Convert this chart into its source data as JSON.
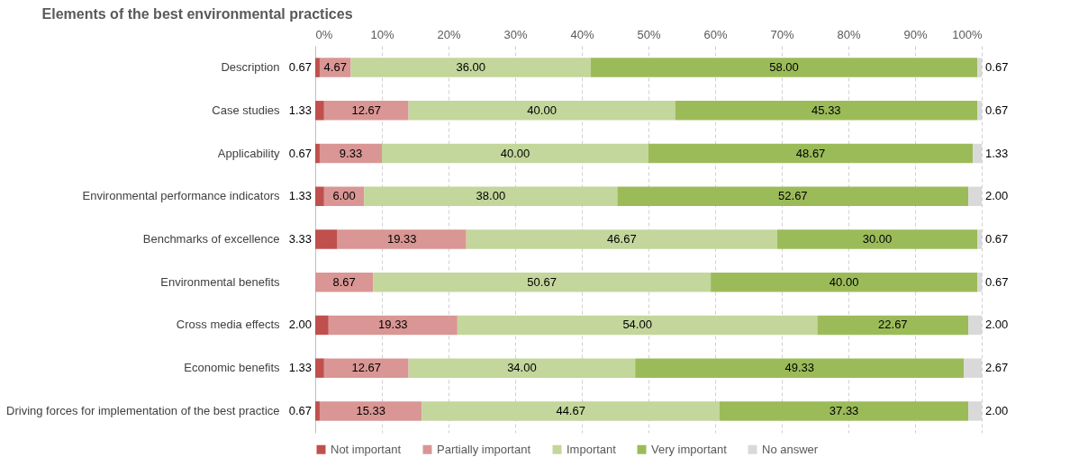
{
  "chart_data": {
    "type": "bar",
    "orientation": "horizontal",
    "stacked": true,
    "title": "Elements of the best environmental practices",
    "categories": [
      "Description",
      "Case studies",
      "Applicability",
      "Environmental performance indicators",
      "Benchmarks of excellence",
      "Environmental benefits",
      "Cross media effects",
      "Economic benefits",
      "Driving forces for implementation of the best practice"
    ],
    "series": [
      {
        "name": "Not important",
        "color": "#c0504d",
        "values": [
          0.67,
          1.33,
          0.67,
          1.33,
          3.33,
          null,
          2.0,
          1.33,
          0.67
        ],
        "value_labels": [
          "0.67",
          "1.33",
          "0.67",
          "1.33",
          "3.33",
          null,
          "2.00",
          "1.33",
          "0.67"
        ]
      },
      {
        "name": "Partially important",
        "color": "#d99694",
        "values": [
          4.67,
          12.67,
          9.33,
          6.0,
          19.33,
          8.67,
          19.33,
          12.67,
          15.33
        ],
        "value_labels": [
          "4.67",
          "12.67",
          "9.33",
          "6.00",
          "19.33",
          "8.67",
          "19.33",
          "12.67",
          "15.33"
        ]
      },
      {
        "name": "Important",
        "color": "#c3d69b",
        "values": [
          36.0,
          40.0,
          40.0,
          38.0,
          46.67,
          50.67,
          54.0,
          34.0,
          44.67
        ],
        "value_labels": [
          "36.00",
          "40.00",
          "40.00",
          "38.00",
          "46.67",
          "50.67",
          "54.00",
          "34.00",
          "44.67"
        ]
      },
      {
        "name": "Very important",
        "color": "#9bbb59",
        "values": [
          58.0,
          45.33,
          48.67,
          52.67,
          30.0,
          40.0,
          22.67,
          49.33,
          37.33
        ],
        "value_labels": [
          "58.00",
          "45.33",
          "48.67",
          "52.67",
          "30.00",
          "40.00",
          "22.67",
          "49.33",
          "37.33"
        ]
      },
      {
        "name": "No answer",
        "color": "#d9d9d9",
        "values": [
          0.67,
          0.67,
          1.33,
          2.0,
          0.67,
          0.67,
          2.0,
          2.67,
          2.0
        ],
        "value_labels": [
          "0.67",
          "0.67",
          "1.33",
          "2.00",
          "0.67",
          "0.67",
          "2.00",
          "2.67",
          "2.00"
        ]
      }
    ],
    "xlim": [
      0,
      100
    ],
    "xticks": [
      {
        "value": 0,
        "label": "0%"
      },
      {
        "value": 10,
        "label": "10%"
      },
      {
        "value": 20,
        "label": "20%"
      },
      {
        "value": 30,
        "label": "30%"
      },
      {
        "value": 40,
        "label": "40%"
      },
      {
        "value": 50,
        "label": "50%"
      },
      {
        "value": 60,
        "label": "60%"
      },
      {
        "value": 70,
        "label": "70%"
      },
      {
        "value": 80,
        "label": "80%"
      },
      {
        "value": 90,
        "label": "90%"
      },
      {
        "value": 100,
        "label": "100%"
      }
    ],
    "grid": "x",
    "legend": "bottom"
  }
}
